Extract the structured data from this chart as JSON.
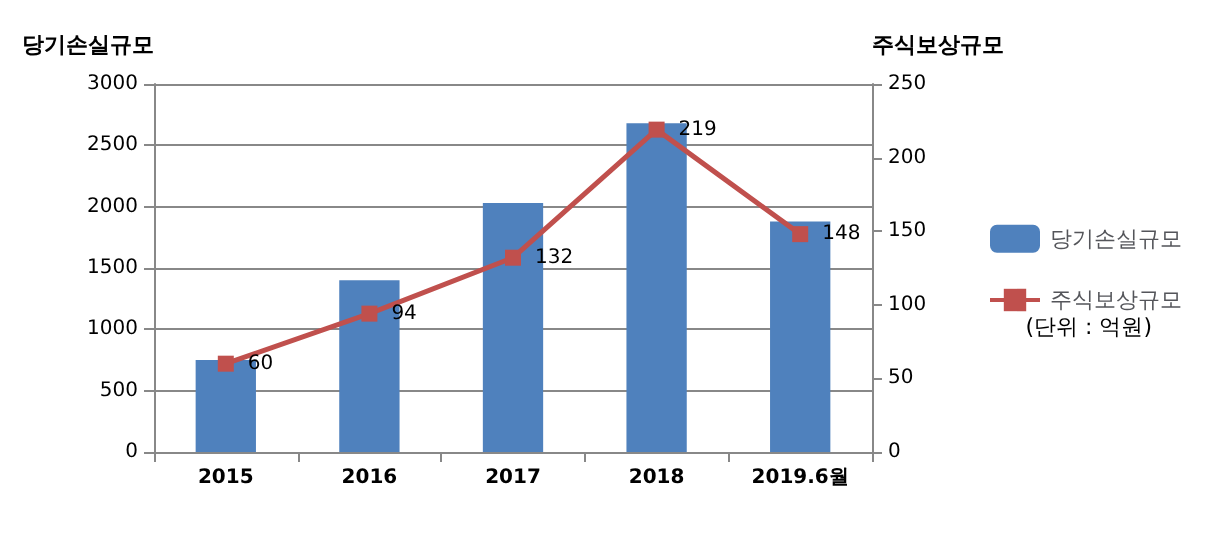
{
  "chart_data": {
    "type": "bar",
    "ylabel": "당기손실규모",
    "y2label": "주식보상규모",
    "categories": [
      "2015",
      "2016",
      "2017",
      "2018",
      "2019.6월"
    ],
    "series": [
      {
        "name": "당기손실규모",
        "color": "#4f81bd",
        "values": [
          750,
          1400,
          2030,
          2680,
          1880
        ]
      },
      {
        "name": "주식보상규모",
        "type": "line",
        "axis": "y2",
        "color": "#c0504d",
        "marker": "square",
        "values": [
          60,
          94,
          132,
          219,
          148
        ],
        "value_labels": [
          "60",
          "94",
          "132",
          "219",
          "148"
        ]
      }
    ],
    "ylim": [
      0,
      3000
    ],
    "yticks": [
      0,
      500,
      1000,
      1500,
      2000,
      2500,
      3000
    ],
    "y2lim": [
      0,
      250
    ],
    "y2ticks": [
      0,
      50,
      100,
      150,
      200,
      250
    ],
    "grid": "y",
    "legend": "right",
    "annotations": [
      "(단위 : 억원)"
    ]
  }
}
